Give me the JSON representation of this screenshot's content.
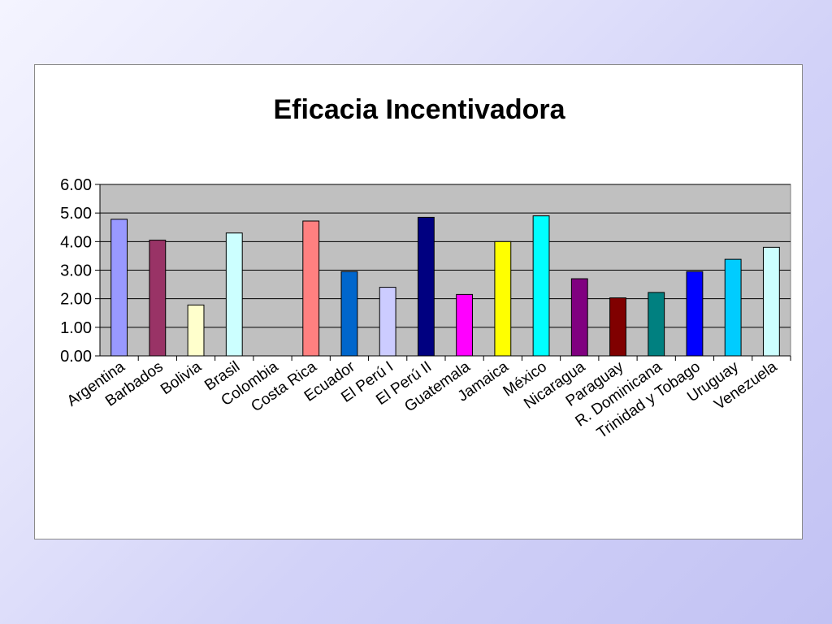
{
  "chart_data": {
    "type": "bar",
    "title": "Eficacia Incentivadora",
    "xlabel": "",
    "ylabel": "",
    "ylim": [
      0,
      6
    ],
    "yticks": [
      "0.00",
      "1.00",
      "2.00",
      "3.00",
      "4.00",
      "5.00",
      "6.00"
    ],
    "grid": true,
    "legend": "none",
    "categories": [
      "Argentina",
      "Barbados",
      "Bolivia",
      "Brasil",
      "Colombia",
      "Costa Rica",
      "Ecuador",
      "El Perú I",
      "El Perú II",
      "Guatemala",
      "Jamaica",
      "México",
      "Nicaragua",
      "Paraguay",
      "R. Dominicana",
      "Trinidad y Tobago",
      "Uruguay",
      "Venezuela"
    ],
    "values": [
      4.78,
      4.05,
      1.78,
      4.3,
      0,
      4.72,
      2.95,
      2.4,
      4.85,
      2.15,
      4.0,
      4.9,
      2.7,
      2.03,
      2.22,
      2.95,
      3.38,
      3.8
    ],
    "colors": [
      "#9999ff",
      "#993366",
      "#ffffcc",
      "#ccffff",
      "#660066",
      "#ff8080",
      "#0066cc",
      "#ccccff",
      "#000080",
      "#ff00ff",
      "#ffff00",
      "#00ffff",
      "#800080",
      "#800000",
      "#008080",
      "#0000ff",
      "#00ccff",
      "#ccffff"
    ],
    "plot_background": "#c0c0c0"
  }
}
